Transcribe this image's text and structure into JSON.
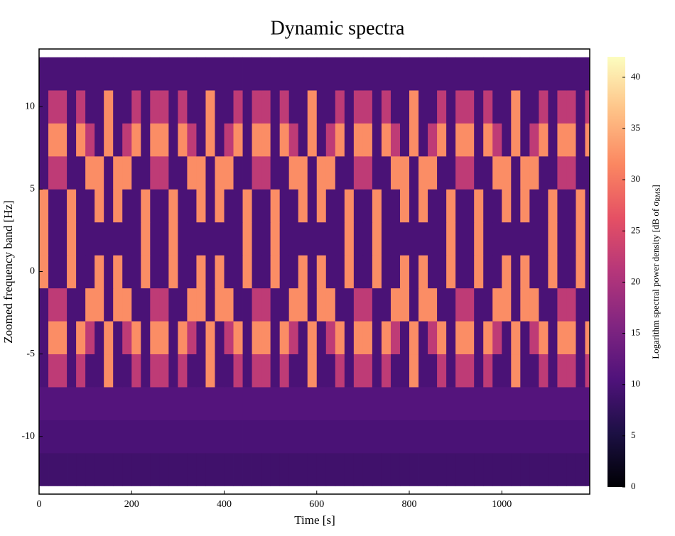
{
  "chart_data": {
    "type": "heatmap",
    "title": "Dynamic spectra",
    "x_label": "Time [s]",
    "y_label": "Zoomed frequency band [Hz]",
    "colorbar_label": [
      "Logarithm spectral power density [dB of σ",
      "RMS",
      "]"
    ],
    "xlim": [
      0,
      1190
    ],
    "ylim": [
      -13.5,
      13.5
    ],
    "xticks": [
      0,
      200,
      400,
      600,
      800,
      1000
    ],
    "yticks": [
      -10,
      -5,
      0,
      5,
      10
    ],
    "clim": [
      0,
      42
    ],
    "cticks": [
      0,
      5,
      10,
      15,
      20,
      25,
      30,
      35,
      40
    ],
    "colormap": [
      "#000004",
      "#1c1044",
      "#4f127b",
      "#812581",
      "#b5367a",
      "#e55064",
      "#fb8761",
      "#fec287",
      "#fcfdbf"
    ],
    "x": [
      10,
      30,
      50,
      70,
      90,
      110,
      130,
      150,
      170,
      190,
      210,
      230,
      250,
      270,
      290,
      310,
      330,
      350,
      370,
      390,
      410,
      430,
      450,
      470,
      490,
      510,
      530,
      550,
      570,
      590,
      610,
      630,
      650,
      670,
      690,
      710,
      730,
      750,
      770,
      790,
      810,
      830,
      850,
      870,
      890,
      910,
      930,
      950,
      970,
      990,
      1010,
      1030,
      1050,
      1070,
      1090,
      1110,
      1130,
      1150,
      1170,
      1190
    ],
    "y": [
      -12,
      -10,
      -8,
      -6,
      -4,
      -2,
      0,
      2,
      4,
      6,
      8,
      10,
      12
    ],
    "z": [
      [
        9,
        9,
        9,
        9,
        9,
        9,
        9,
        9,
        9,
        9,
        9,
        9,
        9,
        9,
        9,
        9,
        9,
        9,
        9,
        9,
        9,
        9,
        9,
        9,
        9,
        9,
        9,
        9,
        9,
        9,
        9,
        9,
        9,
        9,
        9,
        9,
        9,
        9,
        9,
        9,
        9,
        9,
        9,
        9,
        9,
        9,
        9,
        9,
        9,
        9,
        9,
        9,
        9,
        9,
        9,
        9,
        9,
        9,
        9,
        9
      ],
      [
        10,
        10,
        10,
        10,
        10,
        10,
        10,
        10,
        10,
        10,
        10,
        10,
        10,
        10,
        10,
        10,
        10,
        10,
        10,
        10,
        10,
        10,
        10,
        10,
        10,
        10,
        10,
        10,
        10,
        10,
        10,
        10,
        10,
        10,
        10,
        10,
        10,
        10,
        10,
        10,
        10,
        10,
        10,
        10,
        10,
        10,
        10,
        10,
        10,
        10,
        10,
        10,
        10,
        10,
        10,
        10,
        10,
        10,
        10,
        10
      ],
      [
        11,
        11,
        11,
        11,
        11,
        11,
        11,
        11,
        11,
        11,
        11,
        11,
        11,
        11,
        11,
        11,
        11,
        11,
        11,
        11,
        11,
        11,
        11,
        11,
        11,
        11,
        11,
        11,
        11,
        11,
        11,
        11,
        11,
        11,
        11,
        11,
        11,
        11,
        11,
        11,
        11,
        11,
        11,
        11,
        11,
        11,
        11,
        11,
        11,
        11,
        11,
        11,
        11,
        11,
        11,
        11,
        11,
        11,
        11,
        11
      ],
      [
        10,
        22,
        22,
        10,
        22,
        10,
        10,
        32,
        10,
        10,
        22,
        10,
        22,
        22,
        10,
        22,
        10,
        10,
        32,
        10,
        10,
        22,
        10,
        22,
        22,
        10,
        22,
        10,
        10,
        32,
        10,
        10,
        22,
        10,
        22,
        22,
        10,
        22,
        10,
        10,
        32,
        10,
        10,
        22,
        10,
        22,
        22,
        10,
        22,
        10,
        10,
        32,
        10,
        10,
        22,
        10,
        22,
        22,
        10,
        22
      ],
      [
        10,
        32,
        32,
        10,
        32,
        22,
        10,
        32,
        10,
        22,
        32,
        10,
        32,
        32,
        10,
        32,
        22,
        10,
        32,
        10,
        22,
        32,
        10,
        32,
        32,
        10,
        32,
        22,
        10,
        32,
        10,
        22,
        32,
        10,
        32,
        32,
        10,
        32,
        22,
        10,
        32,
        10,
        22,
        32,
        10,
        32,
        32,
        10,
        32,
        22,
        10,
        32,
        10,
        22,
        32,
        10,
        32,
        32,
        10,
        32
      ],
      [
        10,
        22,
        22,
        10,
        10,
        32,
        32,
        10,
        32,
        32,
        10,
        10,
        22,
        22,
        10,
        10,
        32,
        32,
        10,
        32,
        32,
        10,
        10,
        22,
        22,
        10,
        10,
        32,
        32,
        10,
        32,
        32,
        10,
        10,
        22,
        22,
        10,
        10,
        32,
        32,
        10,
        32,
        32,
        10,
        10,
        22,
        22,
        10,
        10,
        32,
        32,
        10,
        32,
        32,
        10,
        10,
        22,
        22,
        10,
        10
      ],
      [
        32,
        10,
        10,
        32,
        10,
        10,
        32,
        10,
        32,
        10,
        10,
        32,
        10,
        10,
        32,
        10,
        10,
        32,
        10,
        32,
        10,
        10,
        32,
        10,
        10,
        32,
        10,
        10,
        32,
        10,
        32,
        10,
        10,
        32,
        10,
        10,
        32,
        10,
        10,
        32,
        10,
        32,
        10,
        10,
        32,
        10,
        10,
        32,
        10,
        10,
        32,
        10,
        32,
        10,
        10,
        32,
        10,
        10,
        32,
        10
      ],
      [
        32,
        10,
        10,
        32,
        10,
        10,
        10,
        10,
        10,
        10,
        10,
        32,
        10,
        10,
        32,
        10,
        10,
        10,
        10,
        10,
        10,
        10,
        32,
        10,
        10,
        32,
        10,
        10,
        10,
        10,
        10,
        10,
        10,
        32,
        10,
        10,
        32,
        10,
        10,
        10,
        10,
        10,
        10,
        10,
        32,
        10,
        10,
        32,
        10,
        10,
        10,
        10,
        10,
        10,
        10,
        32,
        10,
        10,
        32,
        10
      ],
      [
        32,
        10,
        10,
        32,
        10,
        10,
        32,
        10,
        32,
        10,
        10,
        32,
        10,
        10,
        32,
        10,
        10,
        32,
        10,
        32,
        10,
        10,
        32,
        10,
        10,
        32,
        10,
        10,
        32,
        10,
        32,
        10,
        10,
        32,
        10,
        10,
        32,
        10,
        10,
        32,
        10,
        32,
        10,
        10,
        32,
        10,
        10,
        32,
        10,
        10,
        32,
        10,
        32,
        10,
        10,
        32,
        10,
        10,
        32,
        10
      ],
      [
        10,
        22,
        22,
        10,
        10,
        32,
        32,
        10,
        32,
        32,
        10,
        10,
        22,
        22,
        10,
        10,
        32,
        32,
        10,
        32,
        32,
        10,
        10,
        22,
        22,
        10,
        10,
        32,
        32,
        10,
        32,
        32,
        10,
        10,
        22,
        22,
        10,
        10,
        32,
        32,
        10,
        32,
        32,
        10,
        10,
        22,
        22,
        10,
        10,
        32,
        32,
        10,
        32,
        32,
        10,
        10,
        22,
        22,
        10,
        10
      ],
      [
        10,
        32,
        32,
        10,
        32,
        22,
        10,
        32,
        10,
        22,
        32,
        10,
        32,
        32,
        10,
        32,
        22,
        10,
        32,
        10,
        22,
        32,
        10,
        32,
        32,
        10,
        32,
        22,
        10,
        32,
        10,
        22,
        32,
        10,
        32,
        32,
        10,
        32,
        22,
        10,
        32,
        10,
        22,
        32,
        10,
        32,
        32,
        10,
        32,
        22,
        10,
        32,
        10,
        22,
        32,
        10,
        32,
        32,
        10,
        32
      ],
      [
        10,
        22,
        22,
        10,
        22,
        10,
        10,
        32,
        10,
        10,
        22,
        10,
        22,
        22,
        10,
        22,
        10,
        10,
        32,
        10,
        10,
        22,
        10,
        22,
        22,
        10,
        22,
        10,
        10,
        32,
        10,
        10,
        22,
        10,
        22,
        22,
        10,
        22,
        10,
        10,
        32,
        10,
        10,
        22,
        10,
        22,
        22,
        10,
        22,
        10,
        10,
        32,
        10,
        10,
        22,
        10,
        22,
        22,
        10,
        22
      ],
      [
        10,
        10,
        10,
        10,
        10,
        10,
        10,
        10,
        10,
        10,
        10,
        10,
        10,
        10,
        10,
        10,
        10,
        10,
        10,
        10,
        10,
        10,
        10,
        10,
        10,
        10,
        10,
        10,
        10,
        10,
        10,
        10,
        10,
        10,
        10,
        10,
        10,
        10,
        10,
        10,
        10,
        10,
        10,
        10,
        10,
        10,
        10,
        10,
        10,
        10,
        10,
        10,
        10,
        10,
        10,
        10,
        10,
        10,
        10,
        10
      ]
    ]
  }
}
